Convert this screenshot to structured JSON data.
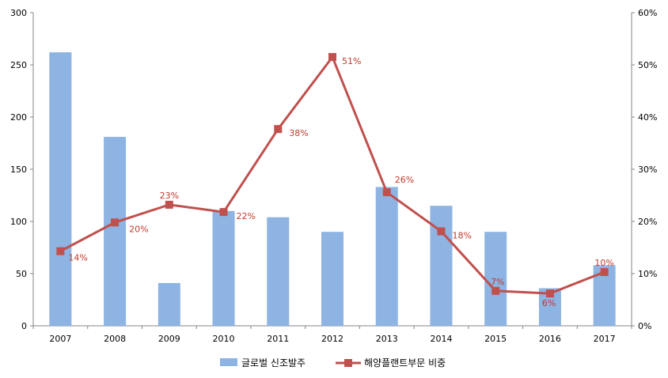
{
  "chart_data": {
    "type": "bar",
    "categories": [
      "2007",
      "2008",
      "2009",
      "2010",
      "2011",
      "2012",
      "2013",
      "2014",
      "2015",
      "2016",
      "2017"
    ],
    "series": [
      {
        "name": "글로벌 신조발주",
        "type": "bar",
        "axis": "left",
        "color": "#8db4e2",
        "values": [
          262,
          181,
          41,
          110,
          104,
          90,
          133,
          115,
          90,
          36,
          58
        ]
      },
      {
        "name": "해양플랜트부문 비중",
        "type": "line",
        "axis": "right",
        "color": "#c0504d",
        "values": [
          14.3,
          19.8,
          23.2,
          21.8,
          37.7,
          51.5,
          25.6,
          18.1,
          6.7,
          6.2,
          10.3
        ],
        "labels": [
          "14%",
          "20%",
          "23%",
          "22%",
          "38%",
          "51%",
          "26%",
          "18%",
          "7%",
          "6%",
          "10%"
        ]
      }
    ],
    "y_left": {
      "ylim": [
        0,
        300
      ],
      "ticks": [
        "0",
        "50",
        "100",
        "150",
        "200",
        "250",
        "300"
      ]
    },
    "y_right": {
      "ylim": [
        0,
        60
      ],
      "ticks": [
        "0%",
        "10%",
        "20%",
        "30%",
        "40%",
        "50%",
        "60%"
      ]
    },
    "grid": false,
    "legend": "bottom"
  }
}
